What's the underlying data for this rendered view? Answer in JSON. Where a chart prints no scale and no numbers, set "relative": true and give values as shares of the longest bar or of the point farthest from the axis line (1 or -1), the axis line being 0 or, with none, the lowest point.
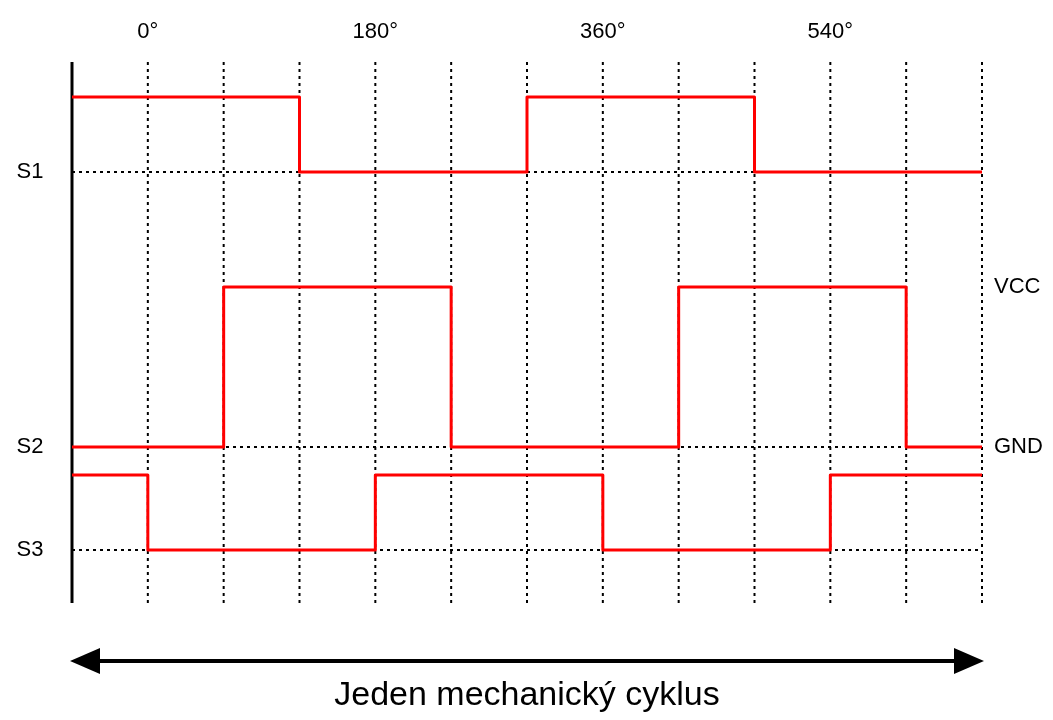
{
  "chart_data": [
    {
      "type": "step",
      "relative": true,
      "ylabel": "S1",
      "x": [
        -60,
        120,
        300,
        480,
        660
      ],
      "values": [
        1,
        0,
        1,
        0,
        0
      ],
      "color": "#ff0000",
      "line_style": "solid",
      "xlim": [
        -60,
        660
      ],
      "xticks": [
        {
          "value": 0,
          "label": "0°"
        },
        {
          "value": 60,
          "label": null
        },
        {
          "value": 120,
          "label": null
        },
        {
          "value": 180,
          "label": "180°"
        },
        {
          "value": 240,
          "label": null
        },
        {
          "value": 300,
          "label": null
        },
        {
          "value": 360,
          "label": "360°"
        },
        {
          "value": 420,
          "label": null
        },
        {
          "value": 480,
          "label": null
        },
        {
          "value": 540,
          "label": "540°"
        },
        {
          "value": 600,
          "label": null
        },
        {
          "value": 660,
          "label": null
        }
      ],
      "grid": "x",
      "tick_labels": "x"
    },
    {
      "type": "step",
      "relative": true,
      "ylabel": "S2",
      "x": [
        -60,
        60,
        240,
        420,
        600,
        660
      ],
      "values": [
        0,
        1,
        0,
        1,
        0,
        0
      ],
      "color": "#ff0000",
      "line_style": "solid",
      "xlim": [
        -60,
        660
      ],
      "grid": "x",
      "tick_labels": false,
      "annotations": [
        "VCC",
        "GND"
      ]
    },
    {
      "type": "step",
      "relative": true,
      "ylabel": "S3",
      "x": [
        -60,
        0,
        180,
        360,
        540,
        660
      ],
      "values": [
        1,
        0,
        1,
        0,
        1,
        1
      ],
      "color": "#ff0000",
      "line_style": "solid",
      "xlim": [
        -60,
        660
      ],
      "grid": "x",
      "tick_labels": false,
      "annotations": [
        "Jeden mechanický cyklus"
      ]
    }
  ]
}
